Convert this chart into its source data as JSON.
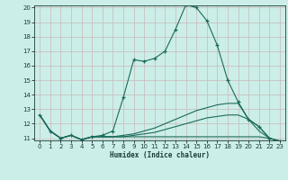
{
  "xlabel": "Humidex (Indice chaleur)",
  "background_color": "#cceee8",
  "line_color": "#1a6a5a",
  "grid_color": "#c8b8b8",
  "xlim": [
    -0.5,
    23.5
  ],
  "ylim": [
    11,
    20
  ],
  "yticks": [
    11,
    12,
    13,
    14,
    15,
    16,
    17,
    18,
    19,
    20
  ],
  "xticks": [
    0,
    1,
    2,
    3,
    4,
    5,
    6,
    7,
    8,
    9,
    10,
    11,
    12,
    13,
    14,
    15,
    16,
    17,
    18,
    19,
    20,
    21,
    22,
    23
  ],
  "series": [
    {
      "x": [
        0,
        1,
        2,
        3,
        4,
        5,
        6,
        7,
        8,
        9,
        10,
        11,
        12,
        13,
        14,
        15,
        16,
        17,
        18,
        19,
        20,
        21,
        22,
        23
      ],
      "y": [
        12.6,
        11.5,
        11.0,
        11.2,
        10.9,
        11.1,
        11.2,
        11.5,
        13.8,
        16.4,
        16.3,
        16.5,
        17.0,
        18.5,
        20.2,
        20.0,
        19.1,
        17.4,
        15.0,
        13.5,
        12.3,
        11.8,
        11.0,
        10.8
      ],
      "has_markers": true
    },
    {
      "x": [
        0,
        1,
        2,
        3,
        4,
        5,
        6,
        7,
        8,
        9,
        10,
        11,
        12,
        13,
        14,
        15,
        16,
        17,
        18,
        19,
        20,
        21,
        22,
        23
      ],
      "y": [
        12.6,
        11.5,
        11.0,
        11.2,
        10.9,
        11.1,
        11.1,
        11.1,
        11.2,
        11.3,
        11.5,
        11.7,
        12.0,
        12.3,
        12.6,
        12.9,
        13.1,
        13.3,
        13.4,
        13.4,
        12.3,
        11.8,
        11.0,
        10.8
      ],
      "has_markers": false
    },
    {
      "x": [
        0,
        1,
        2,
        3,
        4,
        5,
        6,
        7,
        8,
        9,
        10,
        11,
        12,
        13,
        14,
        15,
        16,
        17,
        18,
        19,
        20,
        21,
        22,
        23
      ],
      "y": [
        12.6,
        11.5,
        11.0,
        11.2,
        10.9,
        11.1,
        11.1,
        11.1,
        11.1,
        11.2,
        11.3,
        11.4,
        11.6,
        11.8,
        12.0,
        12.2,
        12.4,
        12.5,
        12.6,
        12.6,
        12.3,
        11.5,
        11.0,
        10.8
      ],
      "has_markers": false
    },
    {
      "x": [
        0,
        1,
        2,
        3,
        4,
        5,
        6,
        7,
        8,
        9,
        10,
        11,
        12,
        13,
        14,
        15,
        16,
        17,
        18,
        19,
        20,
        21,
        22,
        23
      ],
      "y": [
        12.6,
        11.5,
        11.0,
        11.2,
        10.9,
        11.1,
        11.1,
        11.1,
        11.1,
        11.1,
        11.1,
        11.1,
        11.1,
        11.1,
        11.1,
        11.1,
        11.1,
        11.1,
        11.1,
        11.1,
        11.1,
        11.1,
        11.0,
        10.8
      ],
      "has_markers": false
    }
  ]
}
